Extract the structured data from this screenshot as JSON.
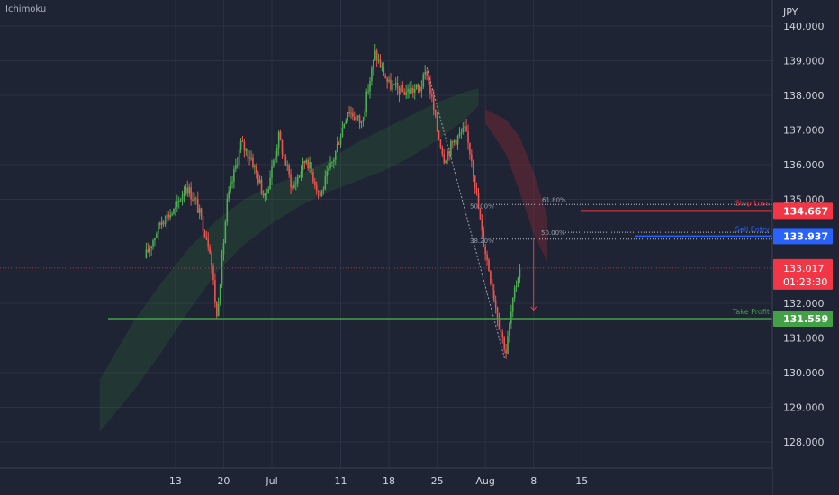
{
  "indicator": {
    "name": "Ichimoku"
  },
  "chart_data": {
    "type": "candlestick",
    "currency": "JPY",
    "ylim": [
      127.2,
      140.6
    ],
    "y_ticks": [
      "140.000",
      "139.000",
      "138.000",
      "137.000",
      "136.000",
      "135.000",
      "132.000",
      "131.000",
      "130.000",
      "129.000",
      "128.000"
    ],
    "x_ticks": [
      {
        "label": "13",
        "day": -14
      },
      {
        "label": "20",
        "day": -7
      },
      {
        "label": "Jul",
        "day": 0
      },
      {
        "label": "11",
        "day": 10
      },
      {
        "label": "18",
        "day": 17
      },
      {
        "label": "25",
        "day": 24
      },
      {
        "label": "Aug",
        "day": 31
      },
      {
        "label": "8",
        "day": 38
      },
      {
        "label": "15",
        "day": 45
      }
    ],
    "levels": {
      "stop_loss": {
        "label": "Stop Loss",
        "value": 134.667,
        "text": "134.667",
        "color": "#f23645"
      },
      "sell_entry": {
        "label": "Sell Entry",
        "value": 133.937,
        "text": "133.937",
        "color": "#2962ff"
      },
      "take_profit": {
        "label": "Take Profit",
        "value": 131.559,
        "text": "131.559",
        "color": "#43a047"
      },
      "current": {
        "value": 133.017,
        "text": "133.017",
        "countdown": "01:23:30",
        "color": "#f23645"
      }
    },
    "fib_upper": [
      {
        "label": "50.00%",
        "value": 134.85
      },
      {
        "label": "61.80%",
        "value": 134.85
      }
    ],
    "fib_lower": [
      {
        "label": "38.20%",
        "value": 133.85
      },
      {
        "label": "50.00%",
        "value": 134.05
      }
    ],
    "anchors": [
      {
        "day": -18.5,
        "value": 133.3
      },
      {
        "day": -16,
        "value": 134.4
      },
      {
        "day": -14,
        "value": 134.7
      },
      {
        "day": -12.5,
        "value": 135.4
      },
      {
        "day": -11,
        "value": 134.9
      },
      {
        "day": -9,
        "value": 133.6
      },
      {
        "day": -8,
        "value": 131.6
      },
      {
        "day": -6.5,
        "value": 134.9
      },
      {
        "day": -4.5,
        "value": 136.6
      },
      {
        "day": -3,
        "value": 136.2
      },
      {
        "day": -1,
        "value": 135.0
      },
      {
        "day": 1,
        "value": 136.8
      },
      {
        "day": 3,
        "value": 135.3
      },
      {
        "day": 5,
        "value": 136.2
      },
      {
        "day": 7,
        "value": 135.1
      },
      {
        "day": 9,
        "value": 136.2
      },
      {
        "day": 11,
        "value": 137.6
      },
      {
        "day": 13,
        "value": 137.2
      },
      {
        "day": 15,
        "value": 139.2
      },
      {
        "day": 17,
        "value": 138.3
      },
      {
        "day": 19,
        "value": 138.1
      },
      {
        "day": 21.5,
        "value": 138.2
      },
      {
        "day": 22.5,
        "value": 138.7
      },
      {
        "day": 24,
        "value": 137.0
      },
      {
        "day": 25,
        "value": 136.2
      },
      {
        "day": 26.5,
        "value": 136.7
      },
      {
        "day": 28,
        "value": 137.0
      },
      {
        "day": 29,
        "value": 136.2
      },
      {
        "day": 30.5,
        "value": 134.0
      },
      {
        "day": 31.5,
        "value": 133.0
      },
      {
        "day": 33,
        "value": 131.4
      },
      {
        "day": 34,
        "value": 130.6
      },
      {
        "day": 34.8,
        "value": 131.8
      },
      {
        "day": 36,
        "value": 133.1
      }
    ],
    "cloud": {
      "upper": [
        {
          "day": -25,
          "value": 129.8
        },
        {
          "day": -20,
          "value": 131.5
        },
        {
          "day": -16,
          "value": 132.6
        },
        {
          "day": -12,
          "value": 133.6
        },
        {
          "day": -8,
          "value": 134.4
        },
        {
          "day": -4,
          "value": 135.0
        },
        {
          "day": 0,
          "value": 135.4
        },
        {
          "day": 4,
          "value": 135.7
        },
        {
          "day": 8,
          "value": 136.1
        },
        {
          "day": 12,
          "value": 136.6
        },
        {
          "day": 16,
          "value": 137.0
        },
        {
          "day": 20,
          "value": 137.4
        },
        {
          "day": 24,
          "value": 137.8
        },
        {
          "day": 28,
          "value": 138.1
        },
        {
          "day": 30,
          "value": 138.2
        }
      ],
      "lower": [
        {
          "day": -25,
          "value": 128.3
        },
        {
          "day": -20,
          "value": 129.5
        },
        {
          "day": -16,
          "value": 130.6
        },
        {
          "day": -12,
          "value": 131.8
        },
        {
          "day": -8,
          "value": 132.9
        },
        {
          "day": -4,
          "value": 133.7
        },
        {
          "day": 0,
          "value": 134.3
        },
        {
          "day": 4,
          "value": 134.8
        },
        {
          "day": 8,
          "value": 135.2
        },
        {
          "day": 12,
          "value": 135.5
        },
        {
          "day": 16,
          "value": 135.8
        },
        {
          "day": 20,
          "value": 136.2
        },
        {
          "day": 24,
          "value": 136.7
        },
        {
          "day": 28,
          "value": 137.3
        },
        {
          "day": 30,
          "value": 137.7
        }
      ],
      "bear_upper": [
        {
          "day": 31,
          "value": 137.6
        },
        {
          "day": 34,
          "value": 137.3
        },
        {
          "day": 36,
          "value": 136.8
        },
        {
          "day": 38,
          "value": 135.8
        },
        {
          "day": 40,
          "value": 134.5
        }
      ],
      "bear_lower": [
        {
          "day": 31,
          "value": 137.2
        },
        {
          "day": 34,
          "value": 136.3
        },
        {
          "day": 36,
          "value": 135.2
        },
        {
          "day": 38,
          "value": 134.0
        },
        {
          "day": 40,
          "value": 133.2
        }
      ]
    },
    "trend_line": {
      "from": {
        "day": 22.5,
        "value": 138.8
      },
      "to": {
        "day": 33.8,
        "value": 130.4
      }
    },
    "target_arrow": {
      "day": 38,
      "from": 133.9,
      "to": 131.8
    }
  }
}
